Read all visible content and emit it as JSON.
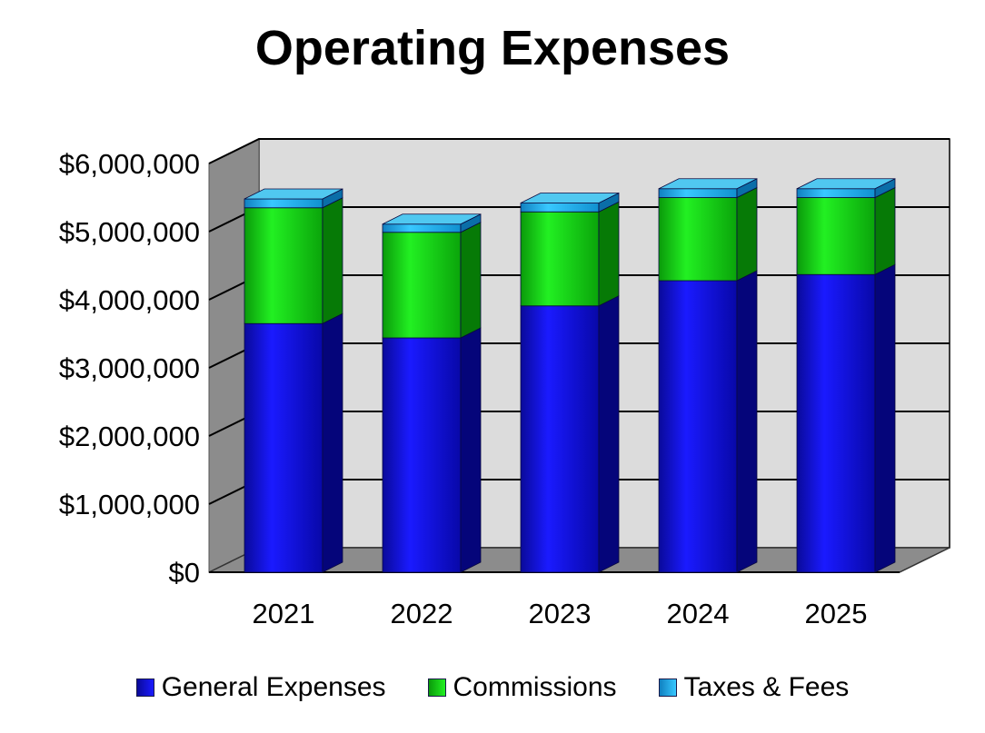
{
  "chart_data": {
    "type": "bar",
    "stacked": true,
    "three_d": true,
    "title": "Operating Expenses",
    "categories": [
      "2021",
      "2022",
      "2023",
      "2024",
      "2025"
    ],
    "series": [
      {
        "name": "General Expenses",
        "color": "#1010d0",
        "values": [
          3650000,
          3440000,
          3910000,
          4280000,
          4370000
        ]
      },
      {
        "name": "Commissions",
        "color": "#10c010",
        "values": [
          1700000,
          1550000,
          1380000,
          1220000,
          1130000
        ]
      },
      {
        "name": "Taxes & Fees",
        "color": "#19a8e0",
        "values": [
          130000,
          120000,
          130000,
          130000,
          130000
        ]
      }
    ],
    "y_ticks": [
      "$0",
      "$1,000,000",
      "$2,000,000",
      "$3,000,000",
      "$4,000,000",
      "$5,000,000",
      "$6,000,000"
    ],
    "ylim": [
      0,
      6000000
    ],
    "grid": true,
    "legend_position": "bottom"
  }
}
